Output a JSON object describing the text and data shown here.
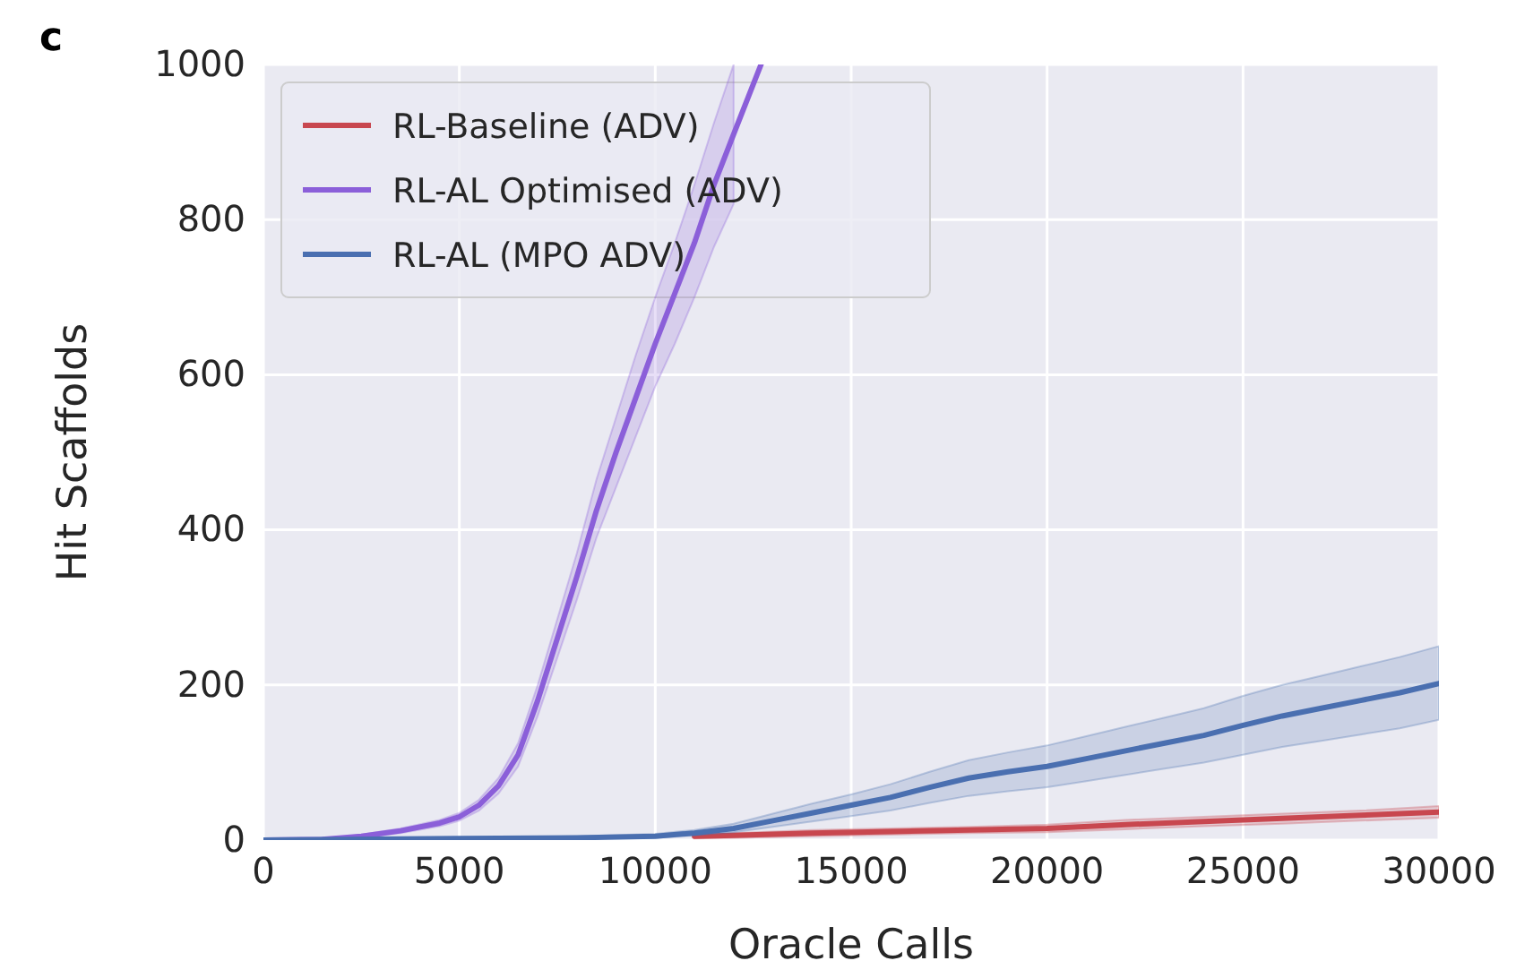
{
  "chart_data": {
    "type": "line",
    "title": "c",
    "xlabel": "Oracle Calls",
    "ylabel": "Hit Scaffolds",
    "xlim": [
      0,
      30000
    ],
    "xticks": [
      0,
      5000,
      10000,
      15000,
      20000,
      25000,
      30000
    ],
    "ylim": [
      0,
      1000
    ],
    "yticks": [
      0,
      200,
      400,
      600,
      800,
      1000
    ],
    "grid": true,
    "legend": "top left",
    "series": [
      {
        "name": "RL-Baseline (ADV)",
        "color": "#c8474f",
        "x": [
          11000,
          12000,
          14000,
          16000,
          18000,
          20000,
          22000,
          24000,
          26000,
          28000,
          30000
        ],
        "values": [
          5,
          6,
          9,
          11,
          13,
          15,
          20,
          24,
          28,
          32,
          36
        ],
        "lower": [
          2,
          3,
          5,
          7,
          9,
          10,
          14,
          18,
          21,
          25,
          29
        ],
        "upper": [
          7,
          9,
          13,
          15,
          17,
          20,
          26,
          30,
          34,
          38,
          44
        ]
      },
      {
        "name": "RL-AL Optimised (ADV)",
        "color": "#8b5fd9",
        "x": [
          0,
          1500,
          2500,
          3500,
          4500,
          5000,
          5500,
          6000,
          6500,
          7000,
          7500,
          8000,
          8500,
          9000,
          9500,
          10000,
          10500,
          11000,
          11500,
          12000,
          12700
        ],
        "values": [
          0,
          1,
          5,
          12,
          22,
          30,
          45,
          70,
          110,
          180,
          260,
          340,
          425,
          500,
          570,
          640,
          705,
          770,
          845,
          910,
          1000
        ],
        "lower": [
          0,
          0,
          3,
          9,
          18,
          25,
          38,
          60,
          95,
          160,
          235,
          310,
          390,
          455,
          520,
          585,
          640,
          700,
          765,
          820,
          null
        ],
        "upper": [
          0,
          2,
          7,
          15,
          26,
          35,
          52,
          80,
          125,
          200,
          285,
          370,
          465,
          545,
          625,
          700,
          770,
          845,
          925,
          1000,
          null
        ]
      },
      {
        "name": "RL-AL (MPO ADV)",
        "color": "#4a6fb0",
        "x": [
          0,
          5000,
          8000,
          10000,
          11000,
          12000,
          13000,
          14000,
          15000,
          16000,
          17000,
          18000,
          19000,
          20000,
          21000,
          22000,
          23000,
          24000,
          25000,
          26000,
          27000,
          28000,
          29000,
          30000
        ],
        "values": [
          0,
          2,
          3,
          5,
          9,
          15,
          25,
          35,
          45,
          55,
          68,
          80,
          88,
          95,
          105,
          115,
          125,
          135,
          148,
          160,
          170,
          180,
          190,
          202
        ],
        "lower": [
          0,
          1,
          2,
          3,
          6,
          10,
          17,
          24,
          31,
          38,
          48,
          57,
          63,
          68,
          76,
          84,
          92,
          100,
          110,
          120,
          128,
          136,
          144,
          155
        ],
        "upper": [
          0,
          3,
          5,
          8,
          13,
          21,
          34,
          47,
          59,
          72,
          88,
          103,
          113,
          122,
          134,
          146,
          158,
          170,
          186,
          200,
          212,
          224,
          236,
          250
        ]
      }
    ]
  }
}
